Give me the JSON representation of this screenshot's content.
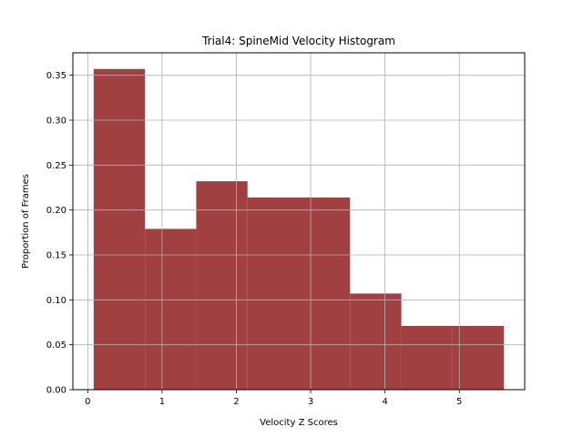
{
  "chart_data": {
    "type": "bar",
    "title": "Trial4: SpineMid Velocity Histogram",
    "xlabel": "Velocity Z Scores",
    "ylabel": "Proportion of Frames",
    "bin_edges": [
      0.08,
      0.77,
      1.46,
      2.15,
      2.84,
      3.53,
      4.22,
      4.91,
      5.6
    ],
    "values": [
      0.357,
      0.179,
      0.232,
      0.214,
      0.214,
      0.107,
      0.071,
      0.071
    ],
    "xlim": [
      -0.2,
      5.88
    ],
    "ylim": [
      0.0,
      0.375
    ],
    "xticks": [
      0,
      1,
      2,
      3,
      4,
      5
    ],
    "xtick_labels": [
      "0",
      "1",
      "2",
      "3",
      "4",
      "5"
    ],
    "yticks": [
      0.0,
      0.05,
      0.1,
      0.15,
      0.2,
      0.25,
      0.3,
      0.35
    ],
    "ytick_labels": [
      "0.00",
      "0.05",
      "0.10",
      "0.15",
      "0.20",
      "0.25",
      "0.30",
      "0.35"
    ],
    "grid": true,
    "bar_color": "#a04040",
    "grid_color": "#b0b0b0"
  }
}
